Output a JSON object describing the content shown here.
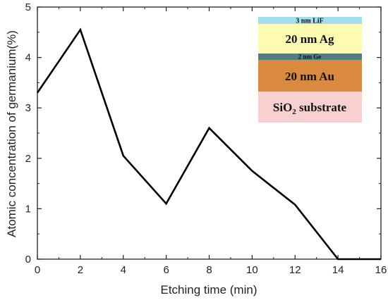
{
  "chart_data": {
    "type": "line",
    "xlabel": "Etching time (min)",
    "ylabel": "Atomic concentration of germanium(%)",
    "xlim": [
      0,
      16
    ],
    "ylim": [
      0,
      5
    ],
    "xticks": [
      0,
      2,
      4,
      6,
      8,
      10,
      12,
      14,
      16
    ],
    "yticks": [
      0,
      1,
      2,
      3,
      4,
      5
    ],
    "series": [
      {
        "x": [
          0,
          2,
          4,
          6,
          8,
          10,
          12,
          14,
          16
        ],
        "y": [
          3.3,
          4.55,
          2.05,
          1.1,
          2.6,
          1.75,
          1.08,
          0.0,
          0.0
        ],
        "color": "#000000"
      }
    ],
    "inset_layers": [
      {
        "label": "3 nm LiF",
        "color": "#a6dcef"
      },
      {
        "label": "20 nm Ag",
        "color": "#fffab2"
      },
      {
        "label": "2 nm Ge",
        "color": "#4f7f80"
      },
      {
        "label": "20 nm Au",
        "color": "#d98a3e"
      },
      {
        "label": "SiO",
        "sub": "2",
        "label_suffix": " substrate",
        "color": "#f9d0d0"
      }
    ]
  }
}
